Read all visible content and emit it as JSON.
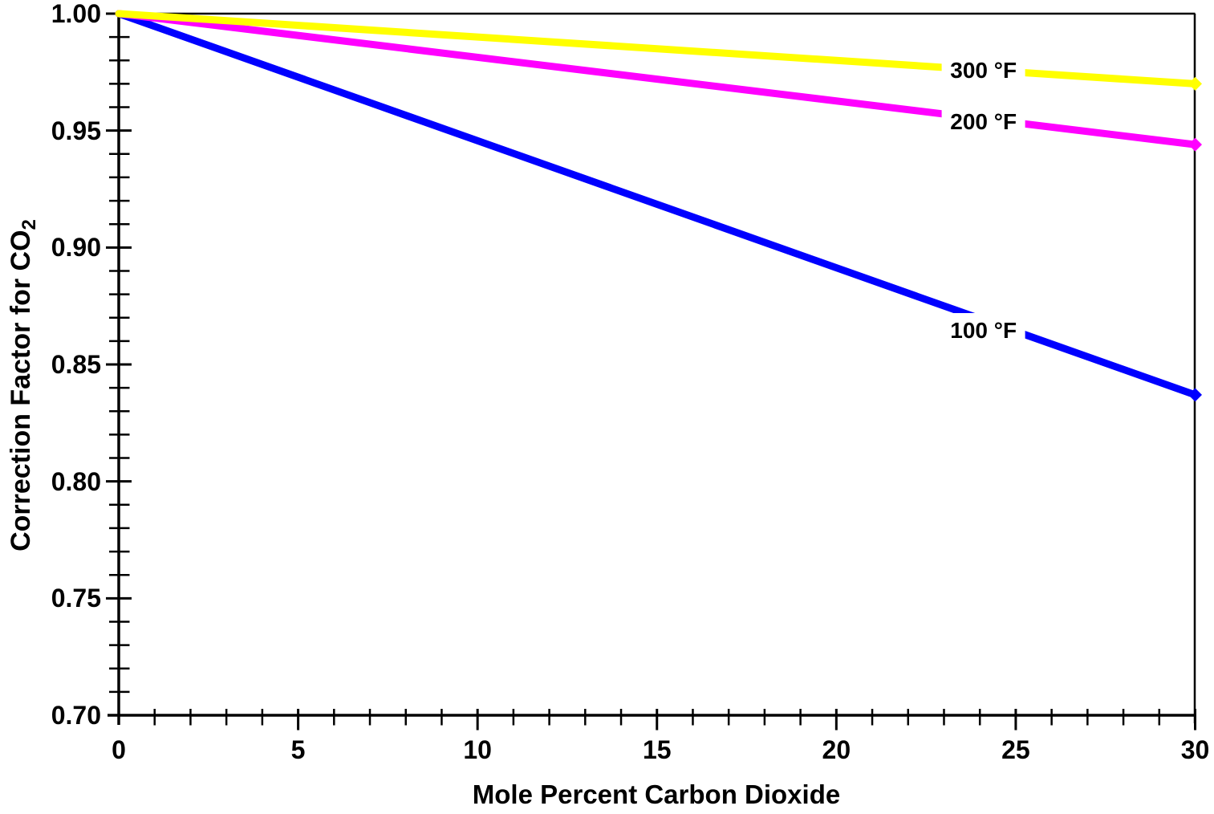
{
  "chart_data": {
    "type": "line",
    "title": "",
    "xlabel": "Mole Percent Carbon Dioxide",
    "ylabel": "Correction Factor for CO₂",
    "ylabel_base": "Correction Factor for CO",
    "ylabel_sub": "2",
    "xlim": [
      0,
      30
    ],
    "ylim": [
      0.7,
      1.0
    ],
    "x_tick_labels": [
      "0",
      "5",
      "10",
      "15",
      "20",
      "25",
      "30"
    ],
    "x_major_tick_step": 5,
    "x_minor_tick_step": 1,
    "y_tick_labels": [
      "1.00",
      "0.95",
      "0.90",
      "0.85",
      "0.80",
      "0.75",
      "0.70"
    ],
    "y_major_tick_step": 0.05,
    "y_minor_tick_step": 0.01,
    "grid": "off",
    "legend": "inline-labels",
    "frame": "full-box",
    "axis_color": "#000000",
    "background_color": "#ffffff",
    "series": [
      {
        "id": "300f",
        "name": "300 °F",
        "color": "#FFFF00",
        "x": [
          0,
          30
        ],
        "y": [
          1.0,
          0.97
        ]
      },
      {
        "id": "200f",
        "name": "200 °F",
        "color": "#FF00FF",
        "x": [
          0,
          30
        ],
        "y": [
          1.0,
          0.944
        ]
      },
      {
        "id": "100f",
        "name": "100 °F",
        "color": "#0000FF",
        "x": [
          0,
          30
        ],
        "y": [
          1.0,
          0.837
        ]
      }
    ],
    "annotations": [
      {
        "text": "300 °F",
        "x": 24.1,
        "y": 0.9755
      },
      {
        "text": "200 °F",
        "x": 24.1,
        "y": 0.9535
      },
      {
        "text": "100 °F",
        "x": 24.1,
        "y": 0.8645
      }
    ]
  }
}
